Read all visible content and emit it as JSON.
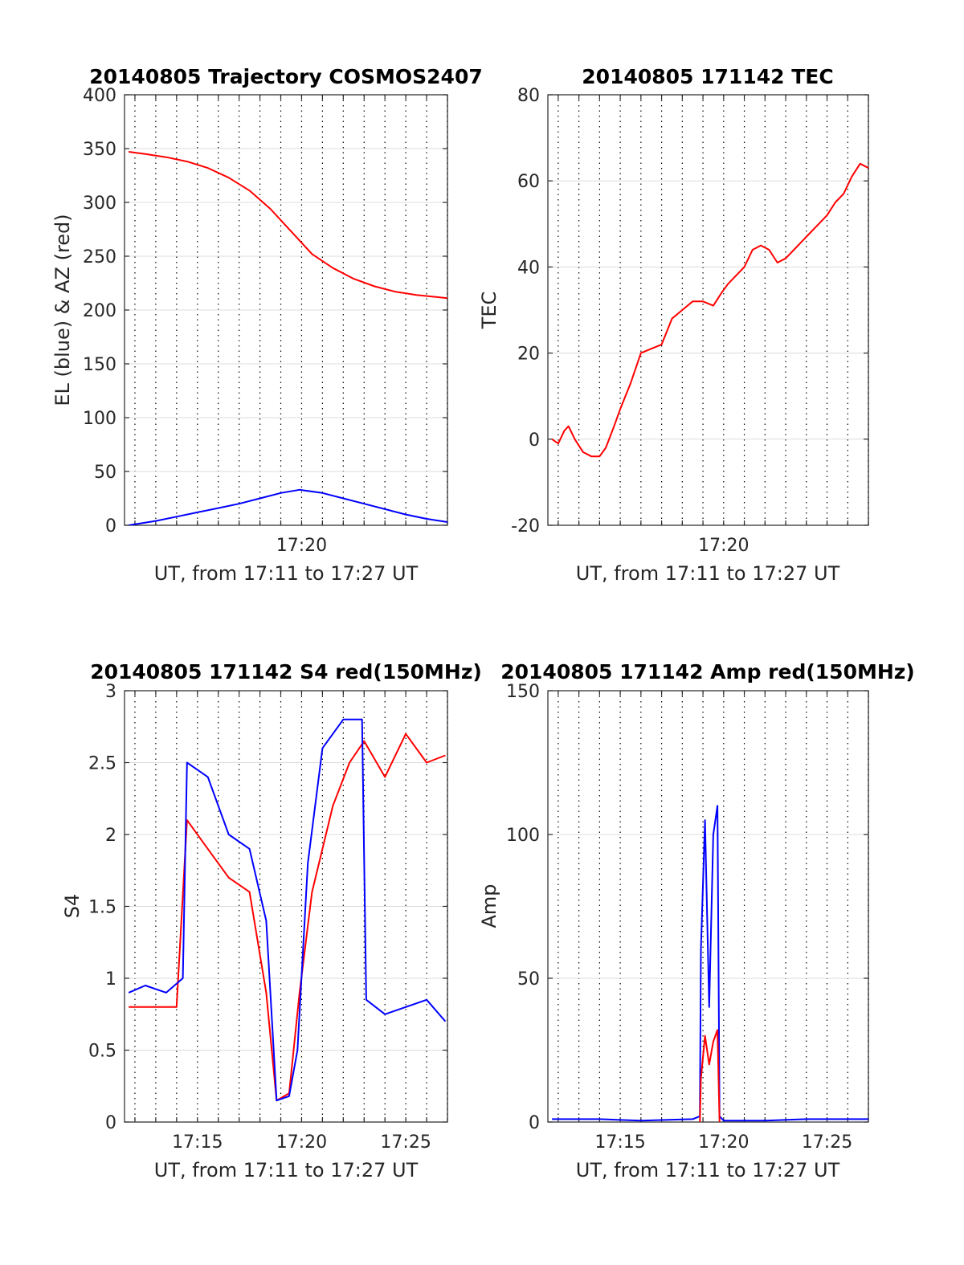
{
  "chart_data": [
    {
      "type": "line",
      "title": "20140805 Trajectory COSMOS2407",
      "xlabel": "UT, from 17:11 to 17:27 UT",
      "ylabel": "EL (blue) & AZ (red)",
      "x_unit": "minutes after 17:00 UT",
      "xlim": [
        11.5,
        27.0
      ],
      "ylim": [
        0,
        400
      ],
      "yticks": [
        0,
        50,
        100,
        150,
        200,
        250,
        300,
        350,
        400
      ],
      "xticks": [
        20
      ],
      "xtick_labels": [
        "17:20"
      ],
      "grid": "horizontal solid at y ticks, vertical dotted every minute",
      "series": [
        {
          "color": "#ff0000",
          "x": [
            11.7,
            12.5,
            13.5,
            14.5,
            15.5,
            16.5,
            17.5,
            18.5,
            19.5,
            20.5,
            21.5,
            22.5,
            23.5,
            24.5,
            25.5,
            26.5,
            27.0
          ],
          "y": [
            347,
            345,
            342,
            338,
            332,
            323,
            311,
            294,
            273,
            252,
            239,
            229,
            222,
            217,
            214,
            212,
            211
          ]
        },
        {
          "color": "#0000ff",
          "x": [
            11.7,
            13,
            14,
            15,
            16,
            17,
            18,
            19,
            19.9,
            21,
            22,
            23,
            24,
            25,
            26,
            27.0
          ],
          "y": [
            0,
            4,
            8,
            12,
            16,
            20,
            25,
            30,
            33,
            30,
            25,
            20,
            15,
            10,
            6,
            3
          ]
        }
      ]
    },
    {
      "type": "line",
      "title": "20140805 171142 TEC",
      "xlabel": "UT, from 17:11 to 17:27 UT",
      "ylabel": "TEC",
      "x_unit": "minutes after 17:00 UT",
      "xlim": [
        11.5,
        27.0
      ],
      "ylim": [
        -20,
        80
      ],
      "yticks": [
        -20,
        0,
        20,
        40,
        60,
        80
      ],
      "xticks": [
        20
      ],
      "xtick_labels": [
        "17:20"
      ],
      "grid": "horizontal solid at y ticks, vertical dotted every minute",
      "series": [
        {
          "color": "#ff0000",
          "x": [
            11.7,
            12.0,
            12.3,
            12.5,
            12.8,
            13.2,
            13.6,
            14.0,
            14.3,
            14.7,
            15.0,
            15.5,
            16.0,
            16.5,
            17.0,
            17.5,
            18.0,
            18.5,
            19.0,
            19.5,
            19.9,
            20.2,
            20.6,
            21.0,
            21.4,
            21.8,
            22.2,
            22.6,
            23.0,
            23.4,
            23.8,
            24.2,
            24.6,
            25.0,
            25.4,
            25.8,
            26.2,
            26.6,
            27.0
          ],
          "y": [
            0,
            -1,
            2,
            3,
            0,
            -3,
            -4,
            -4,
            -2,
            3,
            7,
            13,
            20,
            21,
            22,
            28,
            30,
            32,
            32,
            31,
            34,
            36,
            38,
            40,
            44,
            45,
            44,
            41,
            42,
            44,
            46,
            48,
            50,
            52,
            55,
            57,
            61,
            64,
            63
          ]
        }
      ]
    },
    {
      "type": "line",
      "title": "20140805 171142 S4 red(150MHz)",
      "xlabel": "UT, from 17:11 to 17:27 UT",
      "ylabel": "S4",
      "x_unit": "minutes after 17:00 UT",
      "xlim": [
        11.5,
        27.0
      ],
      "ylim": [
        0,
        3
      ],
      "yticks": [
        0,
        0.5,
        1,
        1.5,
        2,
        2.5,
        3
      ],
      "xticks": [
        15,
        20,
        25
      ],
      "xtick_labels": [
        "17:15",
        "17:20",
        "17:25"
      ],
      "grid": "horizontal solid at y ticks, vertical dotted every minute",
      "series": [
        {
          "color": "#ff0000",
          "x": [
            11.7,
            14.0,
            14.5,
            15.5,
            16.5,
            17.5,
            18.3,
            18.8,
            19.4,
            19.9,
            20.5,
            21.5,
            22.3,
            23.0,
            24.0,
            25.0,
            26.0,
            26.9
          ],
          "y": [
            0.8,
            0.8,
            2.1,
            1.9,
            1.7,
            1.6,
            0.9,
            0.15,
            0.2,
            0.9,
            1.6,
            2.2,
            2.5,
            2.65,
            2.4,
            2.7,
            2.5,
            2.55
          ]
        },
        {
          "color": "#0000ff",
          "x": [
            11.7,
            12.5,
            13.5,
            14.3,
            14.5,
            15.5,
            16.5,
            17.5,
            18.3,
            18.8,
            19.4,
            19.8,
            20.3,
            21.0,
            22.0,
            22.9,
            23.1,
            24.0,
            25.0,
            26.0,
            26.9
          ],
          "y": [
            0.9,
            0.95,
            0.9,
            1.0,
            2.5,
            2.4,
            2.0,
            1.9,
            1.4,
            0.15,
            0.18,
            0.5,
            1.8,
            2.6,
            2.8,
            2.8,
            0.85,
            0.75,
            0.8,
            0.85,
            0.7
          ]
        }
      ]
    },
    {
      "type": "line",
      "title": "20140805 171142 Amp red(150MHz)",
      "xlabel": "UT, from 17:11 to 17:27 UT",
      "ylabel": "Amp",
      "x_unit": "minutes after 17:00 UT",
      "xlim": [
        11.5,
        27.0
      ],
      "ylim": [
        0,
        150
      ],
      "yticks": [
        0,
        50,
        100,
        150
      ],
      "xticks": [
        15,
        20,
        25
      ],
      "xtick_labels": [
        "17:15",
        "17:20",
        "17:25"
      ],
      "grid": "horizontal solid at y ticks, vertical dotted every minute",
      "series": [
        {
          "color": "#0000ff",
          "x": [
            11.7,
            14.0,
            16.0,
            18.5,
            18.85,
            18.9,
            19.1,
            19.3,
            19.5,
            19.7,
            19.8,
            20.0,
            22.0,
            24.0,
            27.0
          ],
          "y": [
            1,
            1,
            0.5,
            1,
            2,
            60,
            105,
            40,
            100,
            110,
            2,
            0.5,
            0.5,
            1,
            1
          ]
        },
        {
          "color": "#ff0000",
          "x": [
            18.85,
            18.9,
            19.1,
            19.3,
            19.5,
            19.7,
            19.8
          ],
          "y": [
            0,
            15,
            30,
            20,
            28,
            32,
            0
          ]
        }
      ]
    }
  ]
}
